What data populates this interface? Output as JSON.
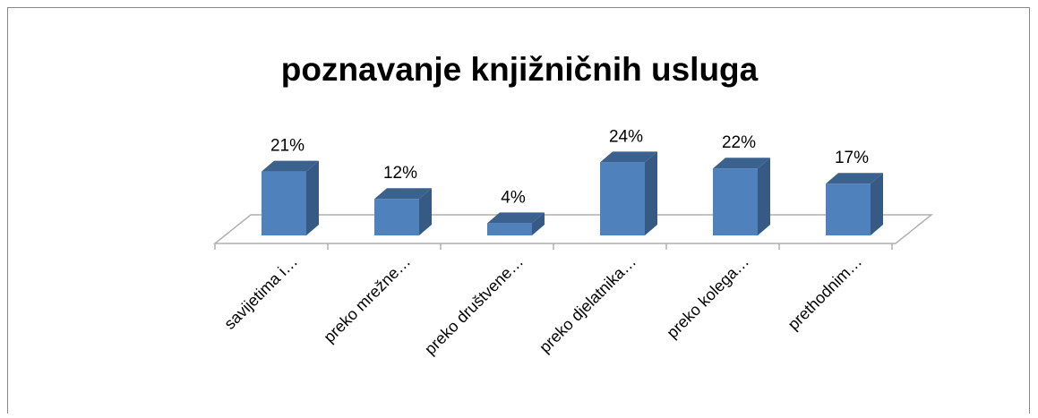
{
  "chart_data": {
    "type": "bar3d",
    "title": "poznavanje knjižničnih usluga",
    "categories": [
      "savijetima i…",
      "preko mrežne…",
      "preko društvene…",
      "preko djelatnika…",
      "preko kolega…",
      "prethodnim…"
    ],
    "values": [
      21,
      12,
      4,
      24,
      22,
      17
    ],
    "value_labels": [
      "21%",
      "12%",
      "4%",
      "24%",
      "22%",
      "17%"
    ],
    "color": "#4f81bd"
  }
}
